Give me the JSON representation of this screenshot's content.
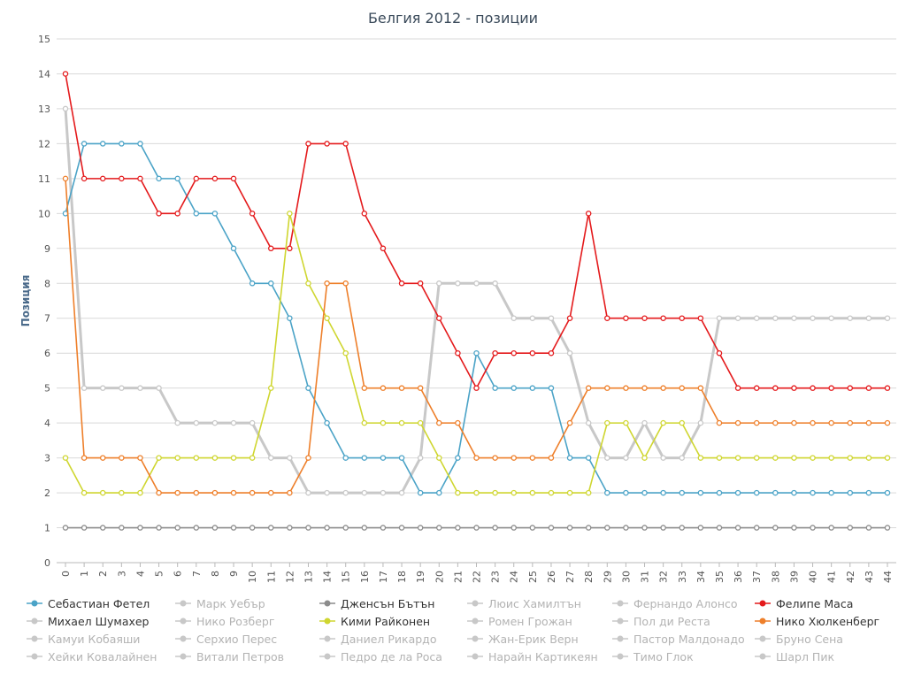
{
  "chart_data": {
    "type": "line",
    "title": "Белгия 2012 - позиции",
    "xlabel": "",
    "ylabel": "Позиция",
    "ylim": [
      0,
      15
    ],
    "xlim": [
      0,
      44
    ],
    "yticks": [
      0,
      1,
      2,
      3,
      4,
      5,
      6,
      7,
      8,
      9,
      10,
      11,
      12,
      13,
      14,
      15
    ],
    "xticks": [
      0,
      1,
      2,
      3,
      4,
      5,
      6,
      7,
      8,
      9,
      10,
      11,
      12,
      13,
      14,
      15,
      16,
      17,
      18,
      19,
      20,
      21,
      22,
      23,
      24,
      25,
      26,
      27,
      28,
      29,
      30,
      31,
      32,
      33,
      34,
      35,
      36,
      37,
      38,
      39,
      40,
      41,
      42,
      43,
      44
    ],
    "grid": true,
    "legend_position": "bottom",
    "series": [
      {
        "name": "Себастиан Фетел",
        "color": "#4ba3c7",
        "active": true,
        "values": [
          10,
          12,
          12,
          12,
          12,
          11,
          11,
          10,
          10,
          9,
          8,
          8,
          7,
          5,
          4,
          3,
          3,
          3,
          3,
          2,
          2,
          3,
          6,
          5,
          5,
          5,
          5,
          3,
          3,
          2,
          2,
          2,
          2,
          2,
          2,
          2,
          2,
          2,
          2,
          2,
          2,
          2,
          2,
          2,
          2
        ]
      },
      {
        "name": "Марк Уебър",
        "color": "#c8c8c8",
        "active": false,
        "values": []
      },
      {
        "name": "Дженсън Бътън",
        "color": "#8c8c8c",
        "active": true,
        "values": [
          1,
          1,
          1,
          1,
          1,
          1,
          1,
          1,
          1,
          1,
          1,
          1,
          1,
          1,
          1,
          1,
          1,
          1,
          1,
          1,
          1,
          1,
          1,
          1,
          1,
          1,
          1,
          1,
          1,
          1,
          1,
          1,
          1,
          1,
          1,
          1,
          1,
          1,
          1,
          1,
          1,
          1,
          1,
          1,
          1
        ]
      },
      {
        "name": "Люис Хамилтън",
        "color": "#c8c8c8",
        "active": false,
        "values": []
      },
      {
        "name": "Фернандо Алонсо",
        "color": "#c8c8c8",
        "active": false,
        "values": []
      },
      {
        "name": "Фелипе Маса",
        "color": "#e41a1c",
        "active": true,
        "values": [
          14,
          11,
          11,
          11,
          11,
          10,
          10,
          11,
          11,
          11,
          10,
          9,
          9,
          12,
          12,
          12,
          10,
          9,
          8,
          8,
          7,
          6,
          5,
          6,
          6,
          6,
          6,
          7,
          10,
          7,
          7,
          7,
          7,
          7,
          7,
          6,
          5,
          5,
          5,
          5,
          5,
          5,
          5,
          5,
          5
        ]
      },
      {
        "name": "Михаел Шумахер",
        "color": "#c8c8c8",
        "active": true,
        "values": [
          13,
          5,
          5,
          5,
          5,
          5,
          4,
          4,
          4,
          4,
          4,
          3,
          3,
          2,
          2,
          2,
          2,
          2,
          2,
          3,
          8,
          8,
          8,
          8,
          7,
          7,
          7,
          6,
          4,
          3,
          3,
          4,
          3,
          3,
          4,
          7,
          7,
          7,
          7,
          7,
          7,
          7,
          7,
          7,
          7
        ]
      },
      {
        "name": "Нико Розберг",
        "color": "#c8c8c8",
        "active": false,
        "values": []
      },
      {
        "name": "Кими Райконен",
        "color": "#cfd630",
        "active": true,
        "values": [
          3,
          2,
          2,
          2,
          2,
          3,
          3,
          3,
          3,
          3,
          3,
          5,
          10,
          8,
          7,
          6,
          4,
          4,
          4,
          4,
          3,
          2,
          2,
          2,
          2,
          2,
          2,
          2,
          2,
          4,
          4,
          3,
          4,
          4,
          3,
          3,
          3,
          3,
          3,
          3,
          3,
          3,
          3,
          3,
          3
        ]
      },
      {
        "name": "Ромен Грожан",
        "color": "#c8c8c8",
        "active": false,
        "values": []
      },
      {
        "name": "Пол ди Реста",
        "color": "#c8c8c8",
        "active": false,
        "values": []
      },
      {
        "name": "Нико Хюлкенберг",
        "color": "#ee7f2a",
        "active": true,
        "values": [
          11,
          3,
          3,
          3,
          3,
          2,
          2,
          2,
          2,
          2,
          2,
          2,
          2,
          3,
          8,
          8,
          5,
          5,
          5,
          5,
          4,
          4,
          3,
          3,
          3,
          3,
          3,
          4,
          5,
          5,
          5,
          5,
          5,
          5,
          5,
          4,
          4,
          4,
          4,
          4,
          4,
          4,
          4,
          4,
          4
        ]
      },
      {
        "name": "Камуи Кобаяши",
        "color": "#c8c8c8",
        "active": false,
        "values": []
      },
      {
        "name": "Серхио Перес",
        "color": "#c8c8c8",
        "active": false,
        "values": []
      },
      {
        "name": "Даниел Рикардо",
        "color": "#c8c8c8",
        "active": false,
        "values": []
      },
      {
        "name": "Жан-Ерик Верн",
        "color": "#c8c8c8",
        "active": false,
        "values": []
      },
      {
        "name": "Пастор Малдонадо",
        "color": "#c8c8c8",
        "active": false,
        "values": []
      },
      {
        "name": "Бруно Сена",
        "color": "#c8c8c8",
        "active": false,
        "values": []
      },
      {
        "name": "Хейки Ковалайнен",
        "color": "#c8c8c8",
        "active": false,
        "values": []
      },
      {
        "name": "Витали Петров",
        "color": "#c8c8c8",
        "active": false,
        "values": []
      },
      {
        "name": "Педро де ла Роса",
        "color": "#c8c8c8",
        "active": false,
        "values": []
      },
      {
        "name": "Нарайн Картикеян",
        "color": "#c8c8c8",
        "active": false,
        "values": []
      },
      {
        "name": "Тимо Глок",
        "color": "#c8c8c8",
        "active": false,
        "values": []
      },
      {
        "name": "Шарл Пик",
        "color": "#c8c8c8",
        "active": false,
        "values": []
      }
    ]
  }
}
